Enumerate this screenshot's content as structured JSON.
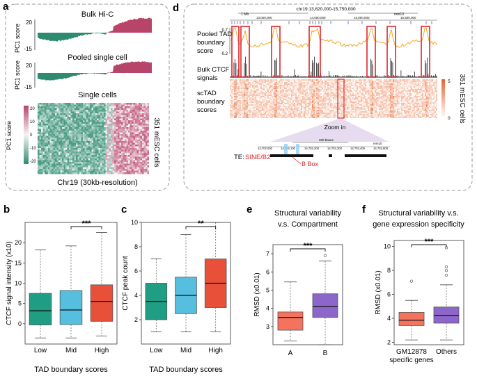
{
  "panel_labels": {
    "a": "a",
    "b": "b",
    "c": "c",
    "d": "d",
    "e": "e",
    "f": "f"
  },
  "panel_a": {
    "bulk_title": "Bulk Hi-C",
    "pooled_title": "Pooled single cell",
    "single_title": "Single cells",
    "pc1_label": "PC1 score",
    "bulk_ticks": [
      "20",
      "-15"
    ],
    "pooled_ticks": [
      "20",
      "-15"
    ],
    "heatmap_ticks": [
      "20",
      "10",
      "0",
      "-10",
      "-20"
    ],
    "cells_label": "351 mESC cells",
    "xlabel": "Chr19 (30kb-resolution)",
    "colors": {
      "positive": "#b8446a",
      "negative": "#2e8b6f"
    }
  },
  "panel_d": {
    "coord_title": "chr19:13,620,000-15,750,000",
    "scale_label": "1 Mb",
    "assembly": "mm10",
    "ruler_ticks": [
      "13,000,000",
      "14,000,000",
      "15,000,000",
      "15,500,000"
    ],
    "track_pooled": [
      "Pooled TAD",
      "boundary",
      "score"
    ],
    "track_pooled_ticks": [
      "0.7",
      "-0.2"
    ],
    "track_ctcf": [
      "Bulk CTCF",
      "signals"
    ],
    "track_sctad": [
      "scTAD",
      "boundary",
      "scores"
    ],
    "colorbar_ticks": [
      "5",
      "0"
    ],
    "cells_label": "351 mESC cells",
    "zoom_label": "Zoom in",
    "zoom_scale": "200 bases",
    "zoom_assembly": "mm10",
    "zoom_ticks": [
      "14,702,000",
      "14,702,100",
      "14,702,200",
      "14,702,300",
      "14,702,400",
      "14,702,500"
    ],
    "te_label": "TE:",
    "te_value": "SINE/B2",
    "bbox_label": "B Box",
    "colors": {
      "line": "#f5a623",
      "highlight": "#e0242b",
      "heat": "#f08a3c"
    }
  },
  "chart_data": [
    {
      "id": "b",
      "type": "box",
      "title": "",
      "ylabel": "CTCF signal intensity (x10)",
      "xlabel": "TAD boundary scores",
      "categories": [
        "Low",
        "Mid",
        "High"
      ],
      "ylim": [
        -5,
        25
      ],
      "yticks": [
        0,
        5,
        10,
        15,
        20
      ],
      "colors": [
        "#1f9e84",
        "#56bfe0",
        "#e8503a"
      ],
      "series": [
        {
          "name": "Low",
          "whisker_low": -3.5,
          "q1": -0.3,
          "median": 3.2,
          "q3": 7.5,
          "whisker_high": 18.2
        },
        {
          "name": "Mid",
          "whisker_low": -3.5,
          "q1": -0.2,
          "median": 3.4,
          "q3": 8.2,
          "whisker_high": 19.2
        },
        {
          "name": "High",
          "whisker_low": -3.0,
          "q1": 0.6,
          "median": 5.5,
          "q3": 9.6,
          "whisker_high": 22.5
        }
      ],
      "significance": {
        "between": [
          "Mid",
          "High"
        ],
        "label": "***"
      }
    },
    {
      "id": "c",
      "type": "box",
      "title": "",
      "ylabel": "CTCF peak count",
      "xlabel": "TAD boundary scores",
      "categories": [
        "Low",
        "Mid",
        "High"
      ],
      "ylim": [
        0,
        10
      ],
      "yticks": [
        2,
        4,
        6,
        8,
        10
      ],
      "colors": [
        "#1f9e84",
        "#56bfe0",
        "#e8503a"
      ],
      "series": [
        {
          "name": "Low",
          "whisker_low": 1.0,
          "q1": 2.0,
          "median": 3.5,
          "q3": 5.0,
          "whisker_high": 7.0
        },
        {
          "name": "Mid",
          "whisker_low": 1.0,
          "q1": 2.5,
          "median": 4.0,
          "q3": 5.5,
          "whisker_high": 9.0
        },
        {
          "name": "High",
          "whisker_low": 1.0,
          "q1": 3.0,
          "median": 5.0,
          "q3": 7.0,
          "whisker_high": 10.0
        }
      ],
      "significance": {
        "between": [
          "Mid",
          "High"
        ],
        "label": "**"
      }
    },
    {
      "id": "e",
      "type": "box",
      "title": "Structural variability v.s. Compartment",
      "title_lines": [
        "Structural variability",
        "v.s. Compartment"
      ],
      "ylabel": "RMSD (x0.01)",
      "xlabel": "",
      "categories": [
        "A",
        "B"
      ],
      "ylim": [
        2,
        7.5
      ],
      "yticks": [
        3,
        4,
        5,
        6,
        7
      ],
      "colors": [
        "#f4735f",
        "#8c66c9"
      ],
      "series": [
        {
          "name": "A",
          "whisker_low": 2.2,
          "q1": 2.8,
          "median": 3.5,
          "q3": 3.8,
          "whisker_high": 5.45,
          "outliers": []
        },
        {
          "name": "B",
          "whisker_low": 2.0,
          "q1": 3.5,
          "median": 4.1,
          "q3": 4.8,
          "whisker_high": 6.6,
          "outliers": [
            6.9
          ]
        }
      ],
      "significance": {
        "between": [
          "A",
          "B"
        ],
        "label": "***"
      }
    },
    {
      "id": "f",
      "type": "box",
      "title": "Structural variability v.s. gene expression specificity",
      "title_lines": [
        "Structural variability v.s.",
        "gene expression specificity"
      ],
      "ylabel": "RMSD (x0.01)",
      "xlabel": "",
      "categories": [
        "GM12878",
        "Others"
      ],
      "category_sublabel": "specific genes",
      "ylim": [
        1.8,
        10.5
      ],
      "yticks": [
        2,
        4,
        6,
        8,
        10
      ],
      "colors": [
        "#f4735f",
        "#8c66c9"
      ],
      "series": [
        {
          "name": "GM12878",
          "whisker_low": 2.2,
          "q1": 3.4,
          "median": 3.85,
          "q3": 4.5,
          "whisker_high": 5.5,
          "outliers": [
            7.1
          ]
        },
        {
          "name": "Others",
          "whisker_low": 2.2,
          "q1": 3.6,
          "median": 4.25,
          "q3": 4.95,
          "whisker_high": 6.8,
          "outliers": [
            7.6,
            8.0,
            8.3,
            9.9
          ]
        }
      ],
      "significance": {
        "between": [
          "GM12878",
          "Others"
        ],
        "label": "***"
      }
    }
  ]
}
